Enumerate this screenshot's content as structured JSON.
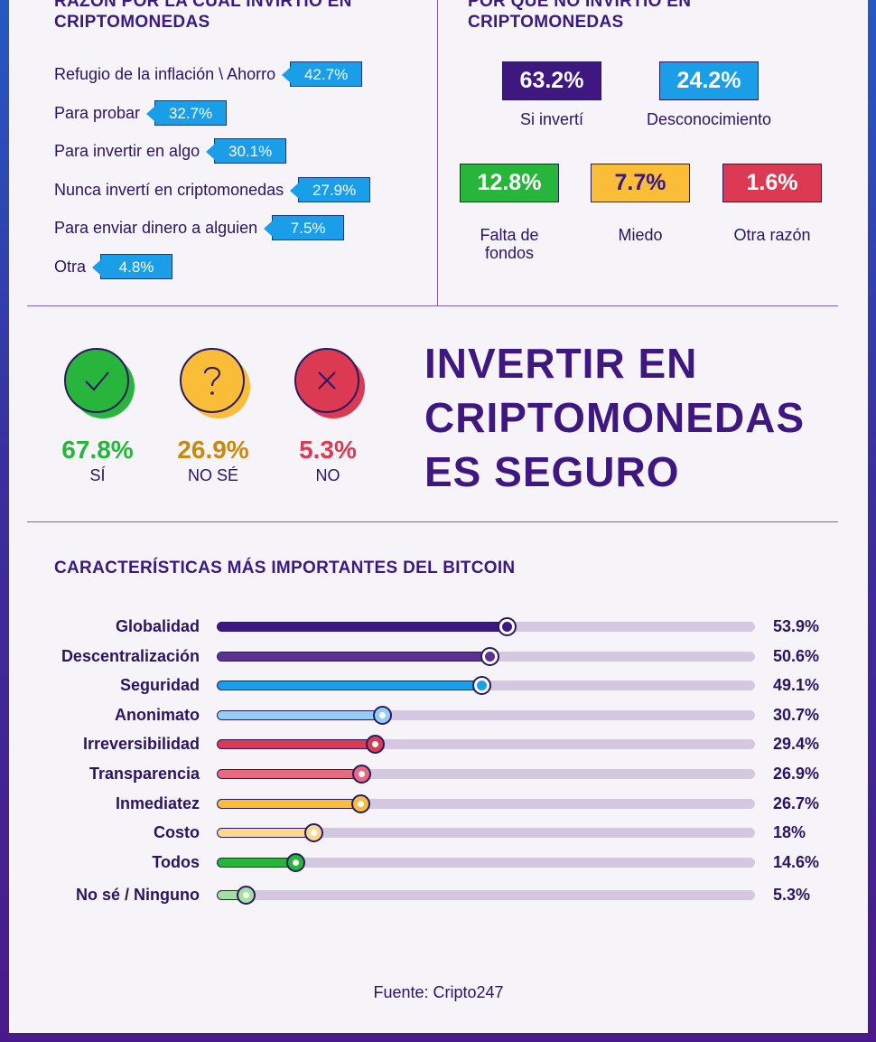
{
  "colors": {
    "purple_dark": "#3e1880",
    "purple": "#5b3294",
    "blue": "#1a9ee8",
    "light_blue": "#8fd0f2",
    "red": "#dc3a52",
    "pink": "#e86a80",
    "yellow": "#f9bd38",
    "light_yellow": "#fbd98a",
    "green": "#27b53b",
    "light_green": "#a4e0a4",
    "brown_text": "#c88a0e"
  },
  "reasons_invested": {
    "title_line1": "RAZÓN POR LA CUÁL INVIRTIÓ EN",
    "title_line2": "CRIPTOMONEDAS",
    "items": [
      {
        "label": "Refugio de la inflación \\ Ahorro",
        "value": "42.7%"
      },
      {
        "label": "Para probar",
        "value": "32.7%"
      },
      {
        "label": "Para invertir en algo",
        "value": "30.1%"
      },
      {
        "label": "Nunca invertí en criptomonedas",
        "value": "27.9%"
      },
      {
        "label": "Para enviar dinero a alguien",
        "value": "7.5%"
      },
      {
        "label": "Otra",
        "value": "4.8%"
      }
    ]
  },
  "reasons_not_invested": {
    "title_line1": "POR QUÉ NO INVIRTIÓ EN",
    "title_line2": "CRIPTOMONEDAS",
    "items": [
      {
        "value": "63.2%",
        "label": "Si invertí",
        "color": "#3e1880"
      },
      {
        "value": "24.2%",
        "label": "Desconocimiento",
        "color": "#1a9ee8"
      },
      {
        "value": "12.8%",
        "label": "Falta de fondos",
        "label_line1": "Falta de",
        "label_line2": "fondos",
        "color": "#27b53b"
      },
      {
        "value": "7.7%",
        "label": "Miedo",
        "color": "#f9bd38"
      },
      {
        "value": "1.6%",
        "label": "Otra razón",
        "color": "#dc3a52"
      }
    ]
  },
  "safety": {
    "title_line1": "INVERTIR EN",
    "title_line2": "CRIPTOMONEDAS",
    "title_line3": "ES SEGURO",
    "items": [
      {
        "value": "67.8%",
        "label": "SÍ",
        "icon": "check-icon"
      },
      {
        "value": "26.9%",
        "label": "NO SÉ",
        "icon": "question-icon"
      },
      {
        "value": "5.3%",
        "label": "NO",
        "icon": "cross-icon"
      }
    ]
  },
  "features_title": "CARACTERÍSTICAS MÁS IMPORTANTES DEL BITCOIN",
  "source": "Fuente: Cripto247",
  "chart_data": {
    "type": "bar",
    "title": "CARACTERÍSTICAS MÁS IMPORTANTES DEL BITCOIN",
    "categories": [
      "Globalidad",
      "Descentralización",
      "Seguridad",
      "Anonimato",
      "Irreversibilidad",
      "Transparencia",
      "Inmediatez",
      "Costo",
      "Todos",
      "No sé / Ninguno"
    ],
    "values": [
      53.9,
      50.6,
      49.1,
      30.7,
      29.4,
      26.9,
      26.7,
      18,
      14.6,
      5.3
    ],
    "value_labels": [
      "53.9%",
      "50.6%",
      "49.1%",
      "30.7%",
      "29.4%",
      "26.9%",
      "26.7%",
      "18%",
      "14.6%",
      "5.3%"
    ],
    "bar_colors": [
      "#3e1880",
      "#5b3294",
      "#1a9ee8",
      "#8fd0f2",
      "#dc3a52",
      "#e86a80",
      "#f9bd38",
      "#fbd98a",
      "#27b53b",
      "#a4e0a4"
    ],
    "orientation": "horizontal",
    "xlim": [
      0,
      100
    ],
    "xlabel": "",
    "ylabel": ""
  }
}
